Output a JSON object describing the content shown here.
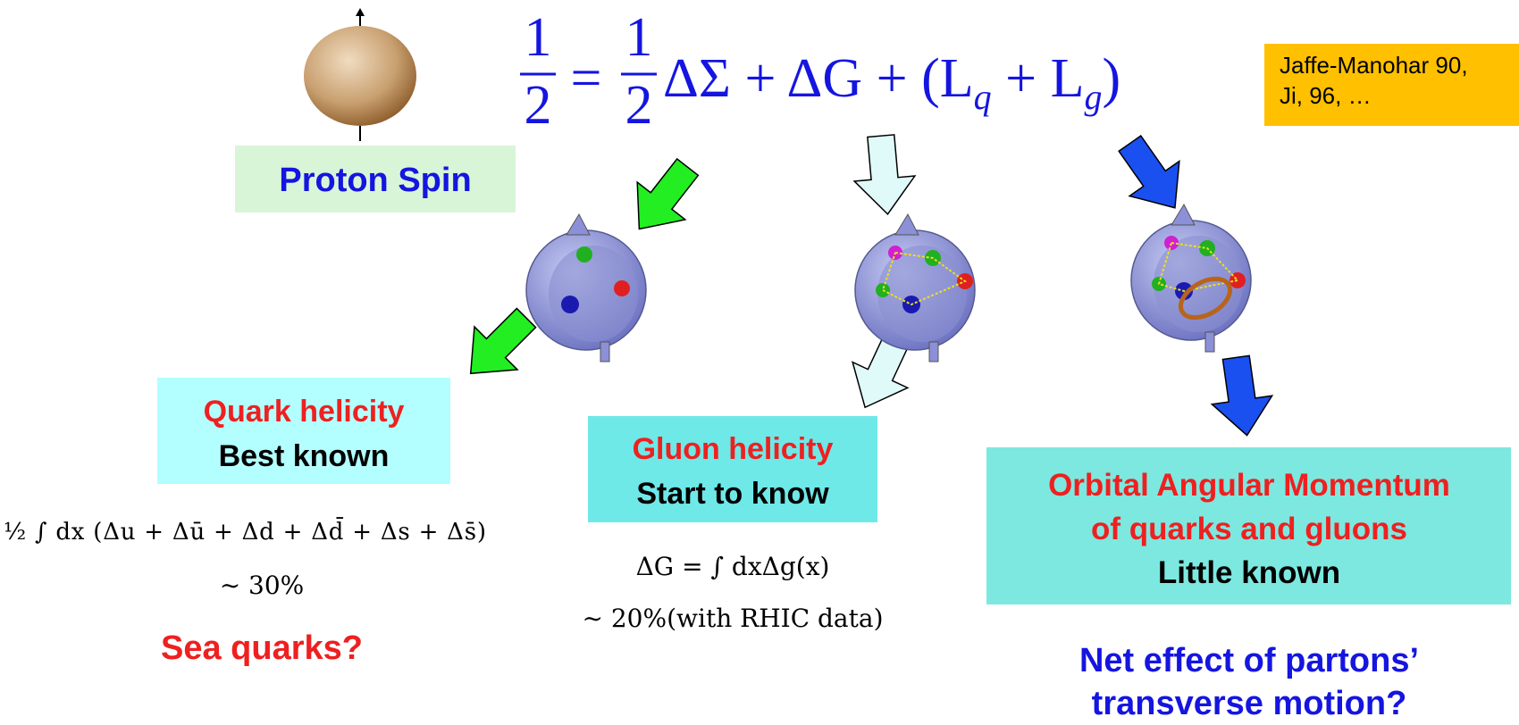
{
  "equation": {
    "lhs_numerator": "1",
    "lhs_denominator": "2",
    "equals": "=",
    "numerator": "1",
    "denominator": "2",
    "terms": "ΔΣ + ΔG + (L",
    "sub_q": "q",
    "plus": " + L",
    "sub_g": "g",
    "close": ")"
  },
  "reference": {
    "line1": "Jaffe-Manohar 90,",
    "line2": "Ji, 96, …"
  },
  "proton_label": "Proton Spin",
  "quark": {
    "title": "Quark helicity",
    "status": "Best known",
    "formula": "½ ∫ dx (Δu + Δū + Δd + Δd̄ + Δs + Δs̄)",
    "fraction": "∼ 30%",
    "question": "Sea quarks?"
  },
  "gluon": {
    "title": "Gluon helicity",
    "status": "Start to know",
    "formula": "ΔG = ∫ dxΔg(x)",
    "fraction": "∼ 20%(with RHIC data)"
  },
  "orbital": {
    "title_line1": "Orbital Angular Momentum",
    "title_line2": "of quarks and gluons",
    "status": "Little known",
    "question_line1": "Net effect of partons’",
    "question_line2": "transverse motion?"
  }
}
